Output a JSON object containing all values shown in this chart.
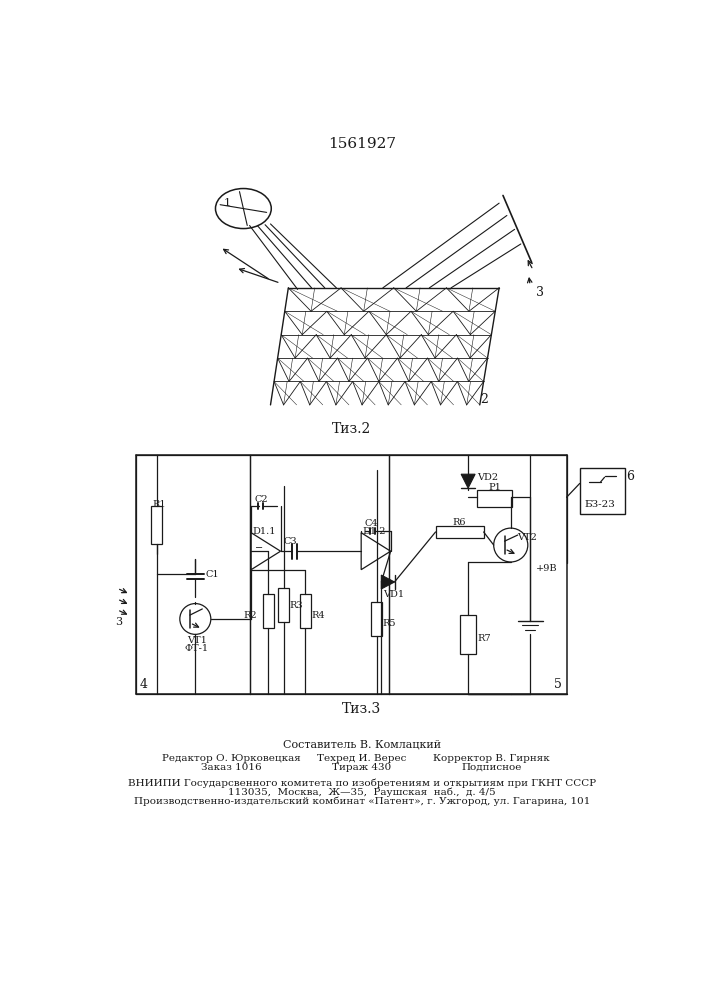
{
  "title": "1561927",
  "fig2_caption": "Τиз.2",
  "fig3_caption": "Τиз.3",
  "footer_line1": "Составитель В. Комлацкий",
  "footer_col1_line1": "Редактор О. Юрковецкая",
  "footer_col1_line2": "Заказ 1016",
  "footer_col2_line1": "Техред И. Верес",
  "footer_col2_line2": "Тираж 430",
  "footer_col3_line1": "Корректор В. Гирняк",
  "footer_col3_line2": "Подписное",
  "footer_vniipи": "ВНИИПИ Государсвенного комитета по изобретениям и открытиям при ГКНТ СССР",
  "footer_address": "113035,  Москва,  Ж—35,  Раушская  наб.,  д. 4/5",
  "footer_kombinat": "Производственно-издательский комбинат «Патент», г. Ужгород, ул. Гагарина, 101",
  "bg_color": "#ffffff"
}
